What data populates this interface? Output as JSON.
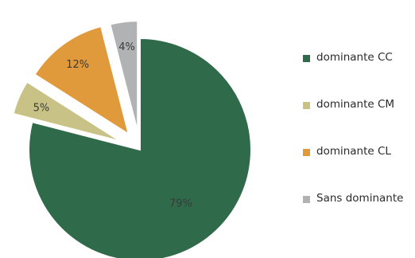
{
  "chart_data": {
    "type": "pie",
    "title": "",
    "categories": [
      "dominante CC",
      "dominante CM",
      "dominante CL",
      "Sans dominante"
    ],
    "values": [
      79,
      5,
      12,
      4
    ],
    "value_labels": [
      "79%",
      "5%",
      "12%",
      "4%"
    ],
    "colors": [
      "#2f6b4a",
      "#c9c286",
      "#e09a3c",
      "#b0b2b3"
    ],
    "exploded": [
      false,
      true,
      true,
      true
    ],
    "legend_position": "right"
  }
}
